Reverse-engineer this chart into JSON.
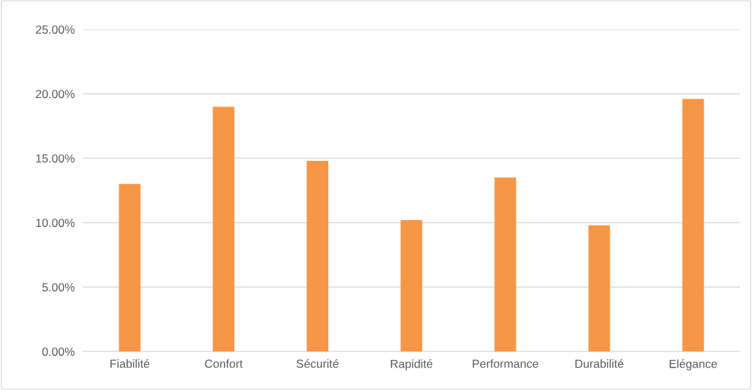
{
  "chart_data": {
    "type": "bar",
    "categories": [
      "Fiabilité",
      "Confort",
      "Sécurité",
      "Rapidité",
      "Performance",
      "Durabilité",
      "Elégance"
    ],
    "values": [
      13.0,
      19.0,
      14.8,
      10.2,
      13.5,
      9.8,
      19.6
    ],
    "color": "#f79646",
    "ylim": [
      0,
      25
    ],
    "yticks": [
      {
        "value": 0,
        "label": "0.00%"
      },
      {
        "value": 5,
        "label": "5.00%"
      },
      {
        "value": 10,
        "label": "10.00%"
      },
      {
        "value": 15,
        "label": "15.00%"
      },
      {
        "value": 20,
        "label": "20.00%"
      },
      {
        "value": 25,
        "label": "25.00%"
      }
    ],
    "grid": "y"
  }
}
